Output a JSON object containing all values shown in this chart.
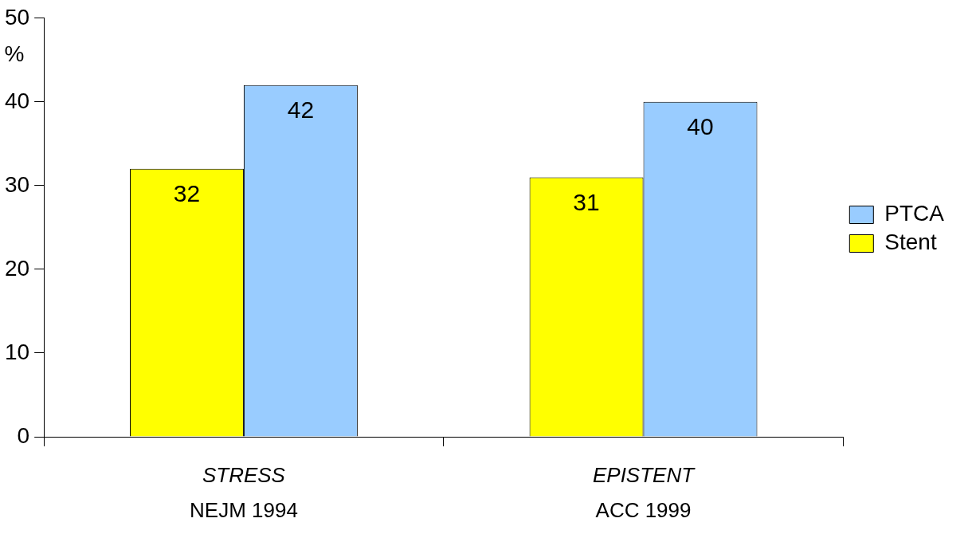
{
  "chart_data": {
    "type": "bar",
    "ylabel": "%",
    "categories": [
      "STRESS\nNEJM 1994",
      "EPISTENT\nACC 1999"
    ],
    "series": [
      {
        "name": "Stent",
        "color": "#ffff00",
        "values": [
          32,
          31
        ]
      },
      {
        "name": "PTCA",
        "color": "#99ccff",
        "values": [
          42,
          40
        ]
      }
    ],
    "ylim": [
      0,
      50
    ],
    "yticks": [
      0,
      10,
      20,
      30,
      40,
      50
    ],
    "grid": false,
    "legend": "right",
    "data_labels": true
  }
}
